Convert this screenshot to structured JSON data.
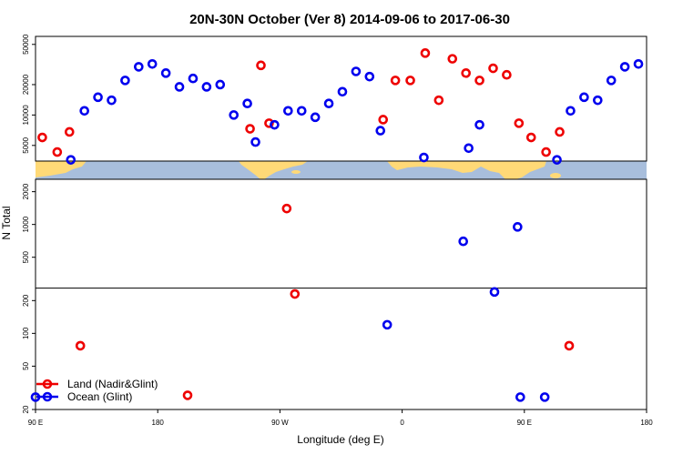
{
  "chart_data": {
    "type": "scatter",
    "title": "20N-30N October (Ver 8)   2014-09-06 to 2017-06-30",
    "xlabel": "Longitude (deg E)",
    "ylabel": "N Total",
    "x_ticks": [
      {
        "value": 90,
        "label": "90 E"
      },
      {
        "value": 180,
        "label": "180"
      },
      {
        "value": 270,
        "label": "90 W"
      },
      {
        "value": 360,
        "label": "0"
      },
      {
        "value": 450,
        "label": "90 E"
      },
      {
        "value": 540,
        "label": "180"
      }
    ],
    "xlim": [
      90,
      540
    ],
    "upper_panel": {
      "scale": "log",
      "ylim": [
        3500,
        60000
      ],
      "y_ticks": [
        {
          "value": 5000,
          "label": "5000"
        },
        {
          "value": 10000,
          "label": "10000"
        },
        {
          "value": 20000,
          "label": "20000"
        },
        {
          "value": 50000,
          "label": "50000"
        }
      ]
    },
    "lower_panel": {
      "scale": "log",
      "ylim": [
        20,
        2600
      ],
      "y_ticks": [
        {
          "value": 20,
          "label": "20"
        },
        {
          "value": 50,
          "label": "50"
        },
        {
          "value": 100,
          "label": "100"
        },
        {
          "value": 200,
          "label": "200"
        },
        {
          "value": 500,
          "label": "500"
        },
        {
          "value": 1000,
          "label": "1000"
        },
        {
          "value": 2000,
          "label": "2000"
        }
      ],
      "reference_line": 260
    },
    "legend": {
      "position": "bottom-left"
    },
    "series": [
      {
        "name": "Land (Nadir&Glint)",
        "color": "#ee0000",
        "points": [
          {
            "x": 95,
            "y": 6000,
            "panel": "upper"
          },
          {
            "x": 106,
            "y": 4300,
            "panel": "upper"
          },
          {
            "x": 115,
            "y": 6800,
            "panel": "upper"
          },
          {
            "x": 123,
            "y": 77,
            "panel": "lower"
          },
          {
            "x": 202,
            "y": 27,
            "panel": "lower"
          },
          {
            "x": 248,
            "y": 7300,
            "panel": "upper"
          },
          {
            "x": 256,
            "y": 31000,
            "panel": "upper"
          },
          {
            "x": 262,
            "y": 8300,
            "panel": "upper"
          },
          {
            "x": 275,
            "y": 1400,
            "panel": "lower"
          },
          {
            "x": 281,
            "y": 230,
            "panel": "lower"
          },
          {
            "x": 346,
            "y": 9000,
            "panel": "upper"
          },
          {
            "x": 355,
            "y": 22000,
            "panel": "upper"
          },
          {
            "x": 366,
            "y": 22000,
            "panel": "upper"
          },
          {
            "x": 377,
            "y": 41000,
            "panel": "upper"
          },
          {
            "x": 387,
            "y": 14000,
            "panel": "upper"
          },
          {
            "x": 397,
            "y": 36000,
            "panel": "upper"
          },
          {
            "x": 407,
            "y": 26000,
            "panel": "upper"
          },
          {
            "x": 417,
            "y": 22000,
            "panel": "upper"
          },
          {
            "x": 427,
            "y": 29000,
            "panel": "upper"
          },
          {
            "x": 437,
            "y": 25000,
            "panel": "upper"
          },
          {
            "x": 446,
            "y": 8300,
            "panel": "upper"
          },
          {
            "x": 455,
            "y": 6000,
            "panel": "upper"
          },
          {
            "x": 466,
            "y": 4300,
            "panel": "upper"
          },
          {
            "x": 476,
            "y": 6800,
            "panel": "upper"
          },
          {
            "x": 483,
            "y": 77,
            "panel": "lower"
          }
        ]
      },
      {
        "name": "Ocean (Glint)",
        "color": "#0000ee",
        "points": [
          {
            "x": 90,
            "y": 26,
            "panel": "lower"
          },
          {
            "x": 116,
            "y": 3600,
            "panel": "upper"
          },
          {
            "x": 126,
            "y": 11000,
            "panel": "upper"
          },
          {
            "x": 136,
            "y": 15000,
            "panel": "upper"
          },
          {
            "x": 146,
            "y": 14000,
            "panel": "upper"
          },
          {
            "x": 156,
            "y": 22000,
            "panel": "upper"
          },
          {
            "x": 166,
            "y": 30000,
            "panel": "upper"
          },
          {
            "x": 176,
            "y": 32000,
            "panel": "upper"
          },
          {
            "x": 186,
            "y": 26000,
            "panel": "upper"
          },
          {
            "x": 196,
            "y": 19000,
            "panel": "upper"
          },
          {
            "x": 206,
            "y": 23000,
            "panel": "upper"
          },
          {
            "x": 216,
            "y": 19000,
            "panel": "upper"
          },
          {
            "x": 226,
            "y": 20000,
            "panel": "upper"
          },
          {
            "x": 236,
            "y": 10000,
            "panel": "upper"
          },
          {
            "x": 246,
            "y": 13000,
            "panel": "upper"
          },
          {
            "x": 252,
            "y": 5400,
            "panel": "upper"
          },
          {
            "x": 266,
            "y": 8000,
            "panel": "upper"
          },
          {
            "x": 276,
            "y": 11000,
            "panel": "upper"
          },
          {
            "x": 286,
            "y": 11000,
            "panel": "upper"
          },
          {
            "x": 296,
            "y": 9500,
            "panel": "upper"
          },
          {
            "x": 306,
            "y": 13000,
            "panel": "upper"
          },
          {
            "x": 316,
            "y": 17000,
            "panel": "upper"
          },
          {
            "x": 326,
            "y": 27000,
            "panel": "upper"
          },
          {
            "x": 336,
            "y": 24000,
            "panel": "upper"
          },
          {
            "x": 344,
            "y": 7000,
            "panel": "upper"
          },
          {
            "x": 349,
            "y": 120,
            "panel": "lower"
          },
          {
            "x": 376,
            "y": 3800,
            "panel": "upper"
          },
          {
            "x": 405,
            "y": 700,
            "panel": "lower"
          },
          {
            "x": 409,
            "y": 4700,
            "panel": "upper"
          },
          {
            "x": 417,
            "y": 8000,
            "panel": "upper"
          },
          {
            "x": 428,
            "y": 240,
            "panel": "lower"
          },
          {
            "x": 445,
            "y": 950,
            "panel": "lower"
          },
          {
            "x": 447,
            "y": 26,
            "panel": "lower"
          },
          {
            "x": 465,
            "y": 26,
            "panel": "lower"
          },
          {
            "x": 474,
            "y": 3600,
            "panel": "upper"
          },
          {
            "x": 484,
            "y": 11000,
            "panel": "upper"
          },
          {
            "x": 494,
            "y": 15000,
            "panel": "upper"
          },
          {
            "x": 504,
            "y": 14000,
            "panel": "upper"
          },
          {
            "x": 514,
            "y": 22000,
            "panel": "upper"
          },
          {
            "x": 524,
            "y": 30000,
            "panel": "upper"
          },
          {
            "x": 534,
            "y": 32000,
            "panel": "upper"
          }
        ]
      }
    ]
  }
}
